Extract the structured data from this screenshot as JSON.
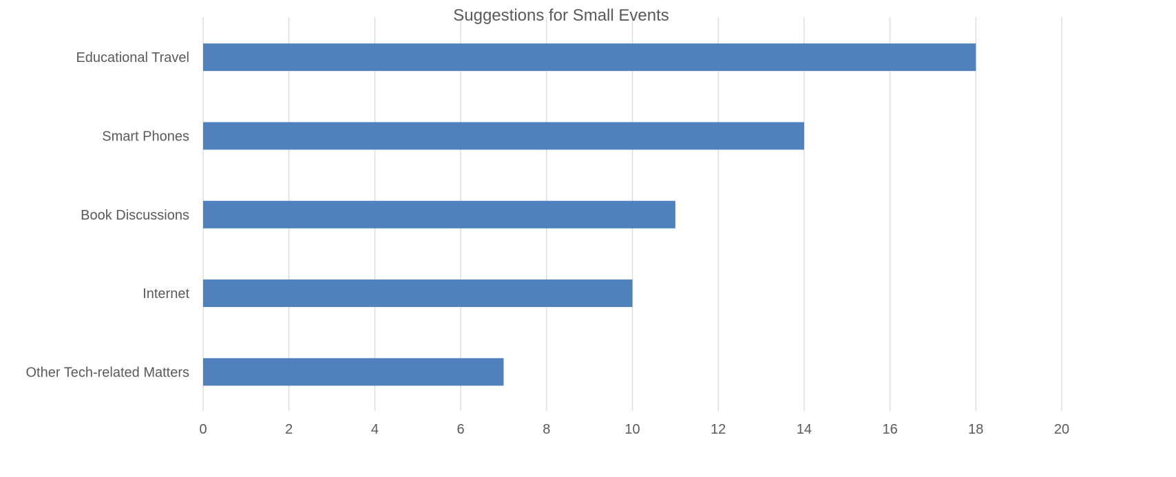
{
  "chart_data": {
    "type": "bar",
    "orientation": "horizontal",
    "title": "Suggestions for Small Events",
    "xlabel": "",
    "ylabel": "",
    "categories": [
      "Educational Travel",
      "Smart Phones",
      "Book Discussions",
      "Internet",
      "Other Tech-related Matters"
    ],
    "values": [
      18,
      14,
      11,
      10,
      7
    ],
    "xlim": [
      0,
      20
    ],
    "xticks": [
      0,
      2,
      4,
      6,
      8,
      10,
      12,
      14,
      16,
      18,
      20
    ],
    "grid": true,
    "legend": "none",
    "bar_color": "#4f81bd",
    "grid_color": "#d9d9d9",
    "text_color": "#595959"
  }
}
